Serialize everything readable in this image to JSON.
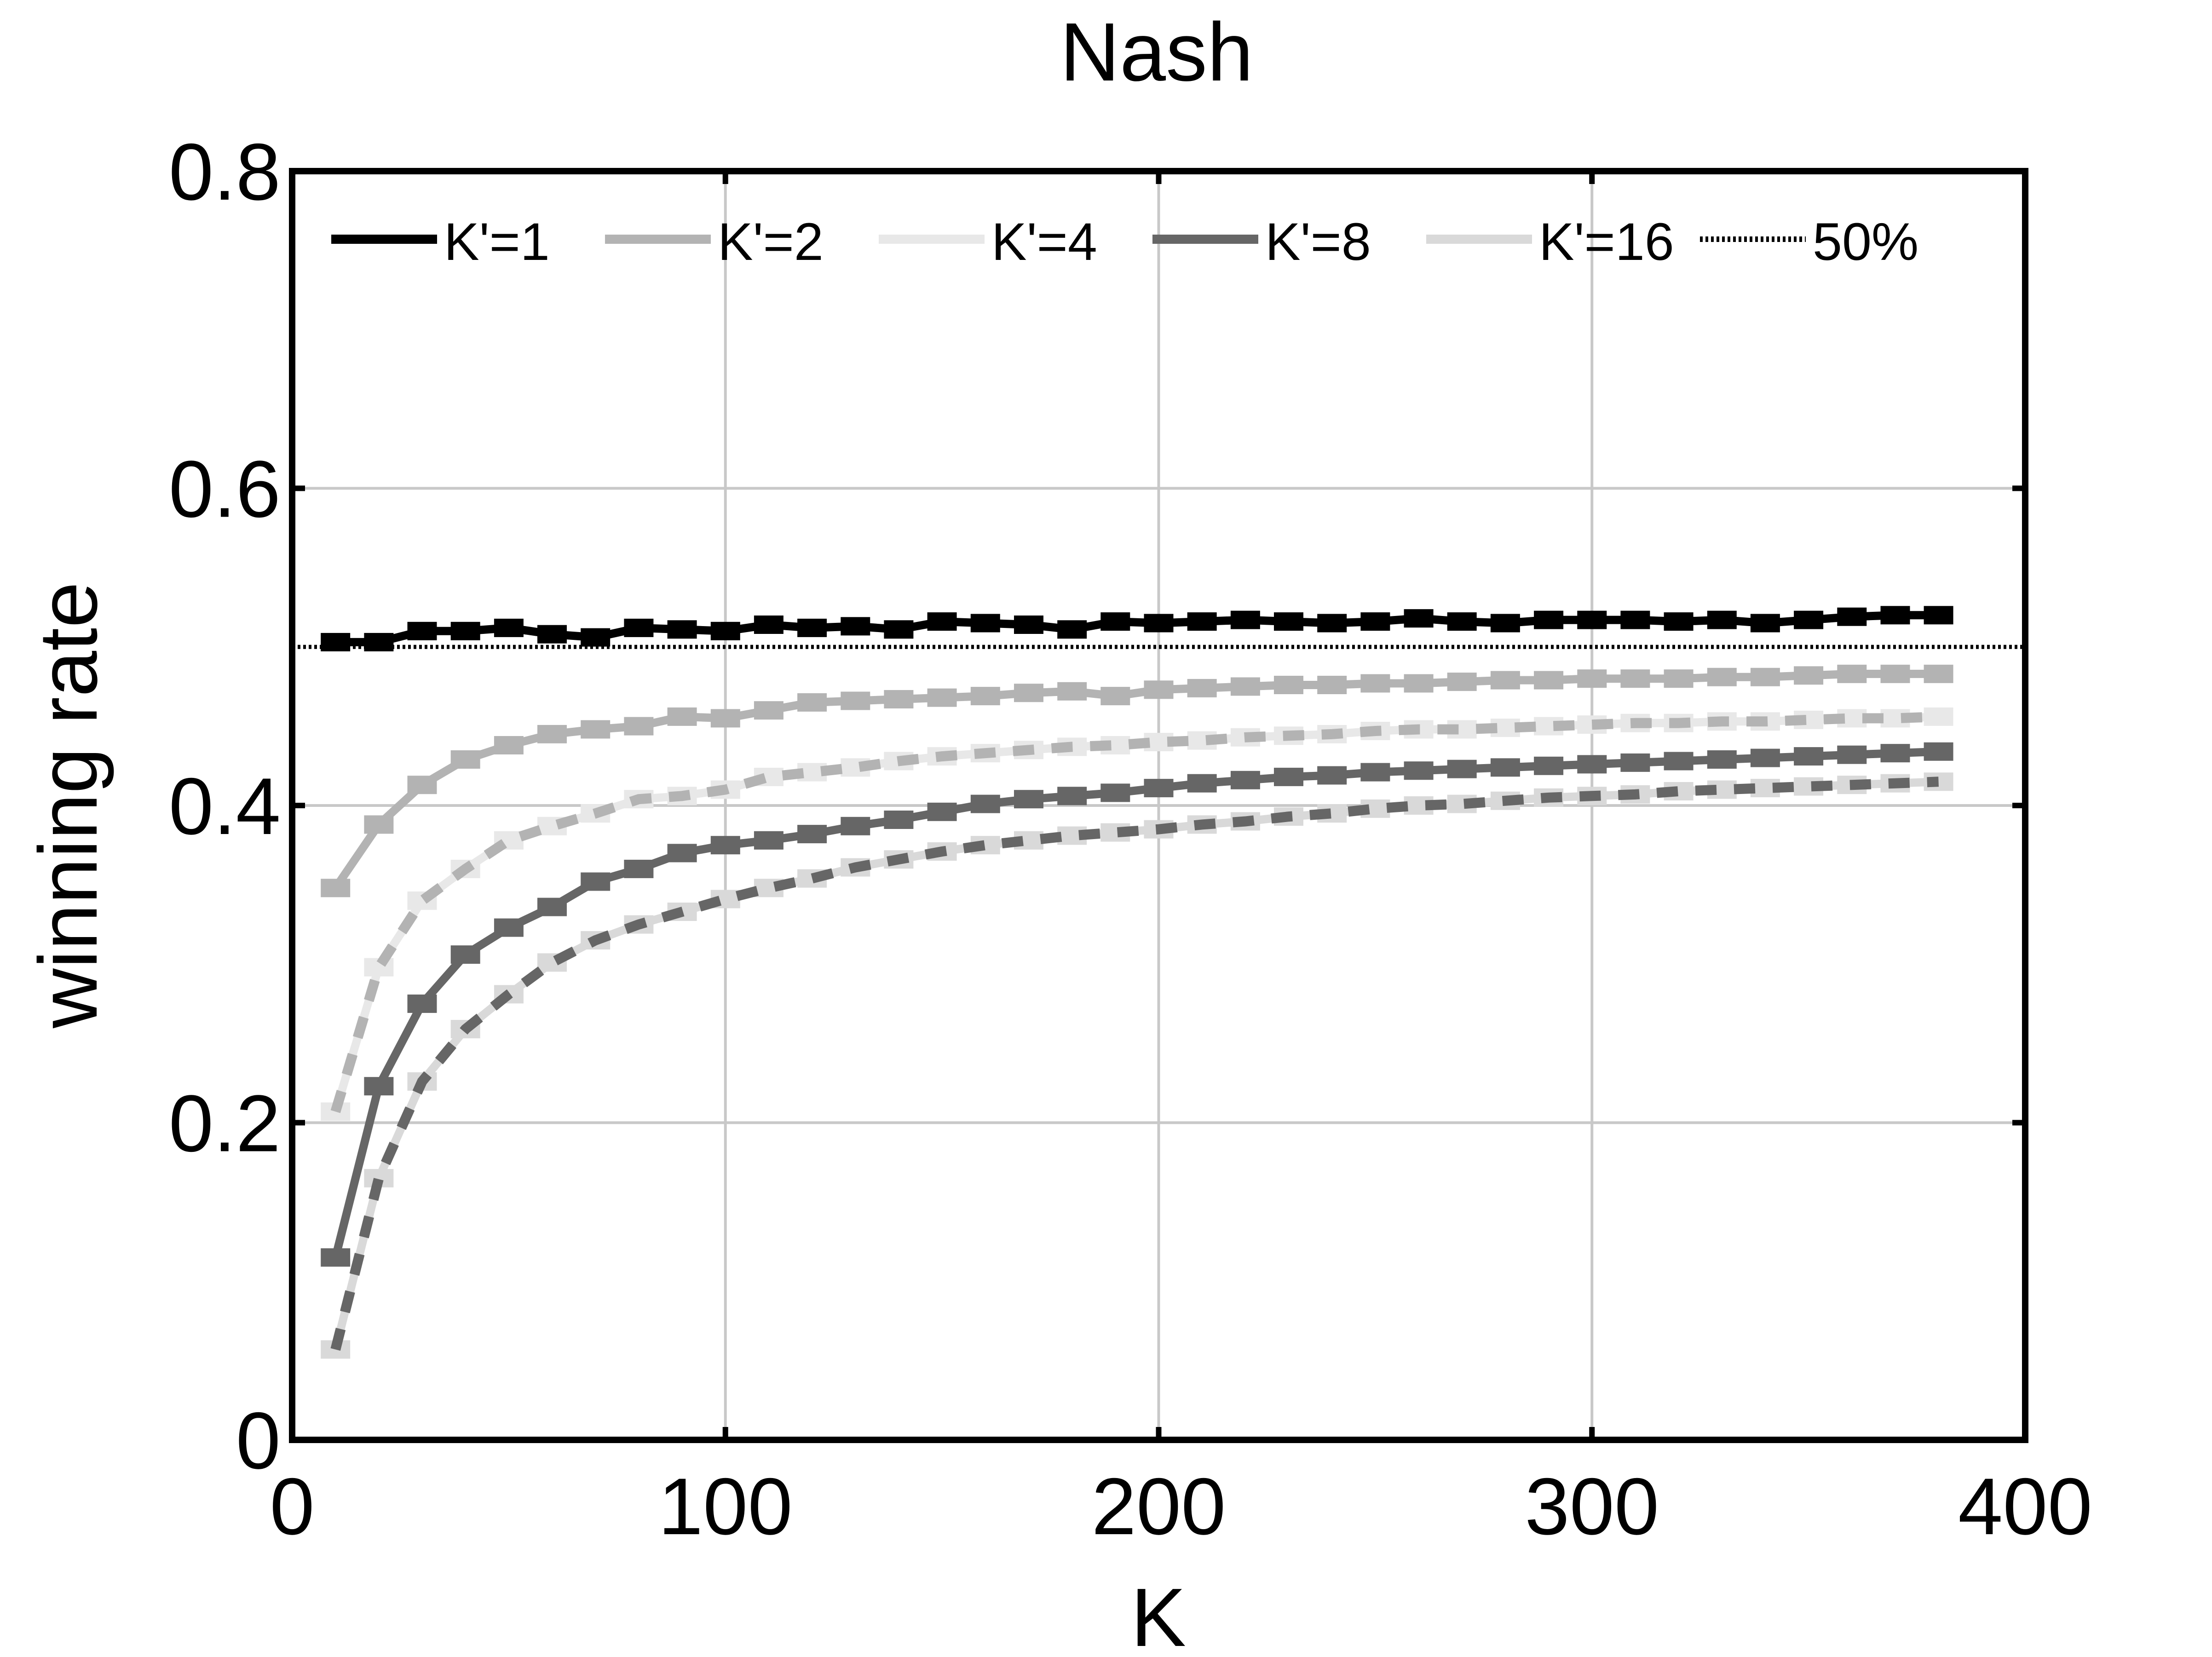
{
  "chart_data": {
    "type": "line",
    "title": "Nash",
    "xlabel": "K",
    "ylabel": "winning rate",
    "xlim": [
      0,
      400
    ],
    "ylim": [
      0,
      0.8
    ],
    "xticks": [
      0,
      100,
      200,
      300,
      400
    ],
    "yticks": [
      0,
      0.2,
      0.4,
      0.6,
      0.8
    ],
    "xtick_labels": [
      "0",
      "100",
      "200",
      "300",
      "400"
    ],
    "ytick_labels": [
      "0",
      "0.2",
      "0.4",
      "0.6",
      "0.8"
    ],
    "grid": true,
    "legend_position": "top",
    "x": [
      10,
      20,
      30,
      40,
      50,
      60,
      70,
      80,
      90,
      100,
      110,
      120,
      130,
      140,
      150,
      160,
      170,
      180,
      190,
      200,
      210,
      220,
      230,
      240,
      250,
      260,
      270,
      280,
      290,
      300,
      310,
      320,
      330,
      340,
      350,
      360,
      370,
      380
    ],
    "series": [
      {
        "name": "K'=1",
        "color": "#000000",
        "style": "solid",
        "values": [
          0.503,
          0.503,
          0.51,
          0.51,
          0.512,
          0.508,
          0.506,
          0.512,
          0.511,
          0.51,
          0.514,
          0.512,
          0.513,
          0.511,
          0.516,
          0.515,
          0.514,
          0.511,
          0.516,
          0.515,
          0.516,
          0.517,
          0.516,
          0.515,
          0.516,
          0.518,
          0.516,
          0.515,
          0.517,
          0.517,
          0.517,
          0.516,
          0.517,
          0.515,
          0.517,
          0.519,
          0.52,
          0.52
        ]
      },
      {
        "name": "K'=2",
        "color": "#b3b3b3",
        "style": "solid",
        "values": [
          0.348,
          0.388,
          0.413,
          0.429,
          0.438,
          0.445,
          0.448,
          0.45,
          0.456,
          0.455,
          0.46,
          0.465,
          0.466,
          0.467,
          0.468,
          0.469,
          0.471,
          0.472,
          0.469,
          0.473,
          0.474,
          0.475,
          0.476,
          0.476,
          0.477,
          0.477,
          0.478,
          0.479,
          0.479,
          0.48,
          0.48,
          0.48,
          0.481,
          0.481,
          0.482,
          0.483,
          0.483,
          0.483
        ]
      },
      {
        "name": "K'=4",
        "color": "#e8e8e8",
        "style": "solid",
        "values": [
          0.207,
          0.298,
          0.34,
          0.36,
          0.378,
          0.387,
          0.395,
          0.404,
          0.406,
          0.41,
          0.418,
          0.421,
          0.424,
          0.428,
          0.431,
          0.433,
          0.435,
          0.437,
          0.438,
          0.44,
          0.441,
          0.443,
          0.444,
          0.445,
          0.447,
          0.448,
          0.448,
          0.449,
          0.45,
          0.451,
          0.452,
          0.452,
          0.453,
          0.453,
          0.454,
          0.455,
          0.455,
          0.456
        ]
      },
      {
        "name": "K'=8",
        "color": "#666666",
        "style": "solid",
        "values": [
          0.115,
          0.223,
          0.275,
          0.306,
          0.323,
          0.336,
          0.352,
          0.36,
          0.37,
          0.375,
          0.378,
          0.382,
          0.387,
          0.391,
          0.396,
          0.401,
          0.404,
          0.406,
          0.408,
          0.411,
          0.414,
          0.416,
          0.418,
          0.419,
          0.421,
          0.422,
          0.423,
          0.424,
          0.425,
          0.426,
          0.427,
          0.428,
          0.429,
          0.43,
          0.431,
          0.432,
          0.433,
          0.434
        ]
      },
      {
        "name": "K'=16",
        "color": "#d9d9d9",
        "style": "solid",
        "values": [
          0.057,
          0.165,
          0.226,
          0.259,
          0.281,
          0.301,
          0.315,
          0.325,
          0.333,
          0.341,
          0.348,
          0.354,
          0.361,
          0.366,
          0.371,
          0.375,
          0.378,
          0.381,
          0.383,
          0.385,
          0.388,
          0.39,
          0.393,
          0.395,
          0.398,
          0.4,
          0.401,
          0.403,
          0.405,
          0.406,
          0.407,
          0.409,
          0.41,
          0.411,
          0.412,
          0.413,
          0.414,
          0.415
        ]
      },
      {
        "name": "K'=16 (dashed)",
        "color": "#666666",
        "style": "dashed",
        "legend": false,
        "values": [
          0.057,
          0.165,
          0.226,
          0.259,
          0.281,
          0.301,
          0.315,
          0.325,
          0.333,
          0.341,
          0.348,
          0.354,
          0.361,
          0.366,
          0.371,
          0.375,
          0.378,
          0.381,
          0.383,
          0.385,
          0.388,
          0.39,
          0.393,
          0.395,
          0.398,
          0.4,
          0.401,
          0.403,
          0.405,
          0.406,
          0.407,
          0.409,
          0.41,
          0.411,
          0.412,
          0.413,
          0.414,
          0.415
        ]
      },
      {
        "name": "K'=4 (dashed)",
        "color": "#b3b3b3",
        "style": "dashed",
        "legend": false,
        "values": [
          0.207,
          0.298,
          0.34,
          0.36,
          0.378,
          0.387,
          0.395,
          0.404,
          0.406,
          0.41,
          0.418,
          0.421,
          0.424,
          0.428,
          0.431,
          0.433,
          0.435,
          0.437,
          0.438,
          0.44,
          0.441,
          0.443,
          0.444,
          0.445,
          0.447,
          0.448,
          0.448,
          0.449,
          0.45,
          0.451,
          0.452,
          0.452,
          0.453,
          0.453,
          0.454,
          0.455,
          0.455,
          0.456
        ]
      }
    ],
    "reference_line": {
      "name": "50%",
      "y": 0.5,
      "color": "#000000",
      "style": "dotted"
    }
  }
}
